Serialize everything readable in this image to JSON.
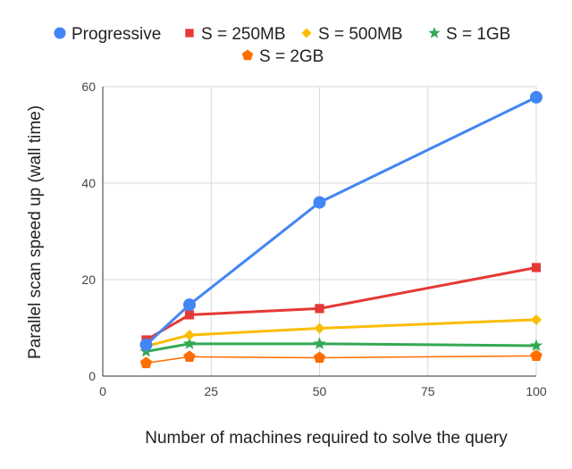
{
  "chart_data": {
    "type": "line",
    "title": "",
    "xlabel": "Number of machines required to solve the query",
    "ylabel": "Parallel scan speed up (wall time)",
    "xlim": [
      0,
      100
    ],
    "ylim": [
      0,
      60
    ],
    "xticks": [
      "0",
      "25",
      "50",
      "75",
      "100"
    ],
    "yticks": [
      "0",
      "20",
      "40",
      "60"
    ],
    "grid": true,
    "legend_position": "top",
    "series": [
      {
        "name": "Progressive",
        "color": "#4285f4",
        "marker": "circle",
        "x": [
          10,
          20,
          50,
          100
        ],
        "y": [
          6.5,
          14.8,
          36,
          57.8
        ]
      },
      {
        "name": "S = 250MB",
        "color": "#e53935",
        "marker": "square",
        "x": [
          10,
          20,
          50,
          100
        ],
        "y": [
          7.5,
          12.7,
          14,
          22.5
        ]
      },
      {
        "name": "S = 500MB",
        "color": "#fbbc04",
        "marker": "diamond",
        "x": [
          10,
          20,
          50,
          100
        ],
        "y": [
          6.2,
          8.5,
          9.9,
          11.7
        ]
      },
      {
        "name": "S = 1GB",
        "color": "#34a853",
        "marker": "star",
        "x": [
          10,
          20,
          50,
          100
        ],
        "y": [
          5.1,
          6.7,
          6.7,
          6.3
        ]
      },
      {
        "name": "S = 2GB",
        "color": "#ff6d00",
        "marker": "pentagon",
        "x": [
          10,
          20,
          50,
          100
        ],
        "y": [
          2.7,
          4,
          3.8,
          4.2
        ]
      }
    ]
  }
}
